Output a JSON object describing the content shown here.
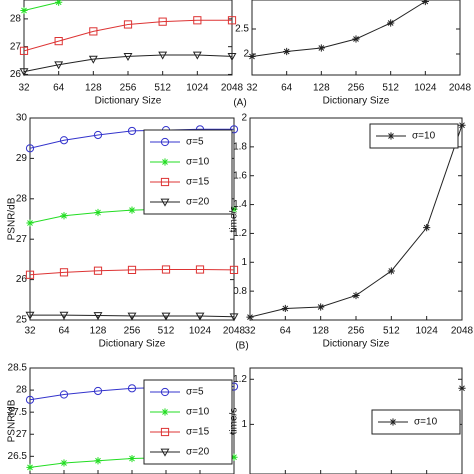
{
  "chart_data": [
    {
      "type": "line",
      "categories": [
        "32",
        "64",
        "128",
        "256",
        "512",
        "1024",
        "2048"
      ],
      "xlabel": "Dictionary Size",
      "annotation": "(A)",
      "ylim": [
        25.98,
        28.68
      ],
      "yticks": [
        26,
        27,
        28
      ],
      "series": [
        {
          "name": "σ=10",
          "color": "#22dd22",
          "marker": "star",
          "values": [
            28.3,
            28.6,
            null,
            null,
            null,
            null,
            null
          ]
        },
        {
          "name": "σ=15",
          "color": "#dd3333",
          "marker": "square",
          "values": [
            26.85,
            27.2,
            27.55,
            27.8,
            27.9,
            27.95,
            27.95
          ]
        },
        {
          "name": "σ=20",
          "color": "#222222",
          "marker": "triangle",
          "values": [
            26.1,
            26.35,
            26.55,
            26.65,
            26.7,
            26.7,
            26.65
          ]
        }
      ]
    },
    {
      "type": "line",
      "categories": [
        "32",
        "64",
        "128",
        "256",
        "512",
        "1024",
        "2048"
      ],
      "xlabel": "Dictionary Size",
      "ylim": [
        1.58,
        3.08
      ],
      "yticks": [
        2,
        2.5
      ],
      "series": [
        {
          "name": "σ=10",
          "color": "#222222",
          "marker": "star",
          "values": [
            1.95,
            2.05,
            2.12,
            2.3,
            2.62,
            3.05,
            null
          ]
        }
      ]
    },
    {
      "type": "line",
      "categories": [
        "32",
        "64",
        "128",
        "256",
        "512",
        "1024",
        "2048"
      ],
      "xlabel": "Dictionary Size",
      "ylabel": "PSNR/dB",
      "annotation": "(B)",
      "legend": "upper right",
      "ylim": [
        25,
        30
      ],
      "yticks": [
        25,
        26,
        27,
        28,
        29,
        30
      ],
      "series": [
        {
          "name": "σ=5",
          "color": "#3333cc",
          "marker": "circle",
          "values": [
            29.25,
            29.45,
            29.58,
            29.68,
            29.7,
            29.72,
            29.72
          ]
        },
        {
          "name": "σ=10",
          "color": "#22dd22",
          "marker": "star",
          "values": [
            27.4,
            27.58,
            27.66,
            27.72,
            27.74,
            27.75,
            27.74
          ]
        },
        {
          "name": "σ=15",
          "color": "#dd3333",
          "marker": "square",
          "values": [
            26.12,
            26.18,
            26.22,
            26.24,
            26.25,
            26.25,
            26.24
          ]
        },
        {
          "name": "σ=20",
          "color": "#222222",
          "marker": "triangle",
          "values": [
            25.12,
            25.12,
            25.11,
            25.1,
            25.1,
            25.1,
            25.08
          ]
        }
      ]
    },
    {
      "type": "line",
      "categories": [
        "32",
        "64",
        "128",
        "256",
        "512",
        "1024",
        "2048"
      ],
      "xlabel": "Dictionary Size",
      "ylabel": "time/s",
      "legend": "upper left",
      "ylim": [
        0.6,
        2
      ],
      "yticks": [
        0.8,
        1,
        1.2,
        1.4,
        1.6,
        1.8,
        2
      ],
      "series": [
        {
          "name": "σ=10",
          "color": "#222222",
          "marker": "star",
          "values": [
            0.62,
            0.68,
            0.69,
            0.77,
            0.94,
            1.24,
            1.95
          ]
        }
      ]
    },
    {
      "type": "line",
      "categories": [
        "32",
        "64",
        "128",
        "256",
        "512",
        "1024",
        "2048"
      ],
      "ylabel": "PSNR/dB",
      "legend": "upper right",
      "ylim": [
        26.1,
        28.5
      ],
      "yticks": [
        26.5,
        27,
        27.5,
        28,
        28.5
      ],
      "series": [
        {
          "name": "σ=5",
          "color": "#3333cc",
          "marker": "circle",
          "values": [
            27.78,
            27.9,
            27.98,
            28.04,
            28.06,
            28.08,
            28.08
          ]
        },
        {
          "name": "σ=10",
          "color": "#22dd22",
          "marker": "star",
          "values": [
            26.25,
            26.35,
            26.4,
            26.45,
            26.47,
            26.48,
            26.48
          ]
        },
        {
          "name": "σ=15",
          "color": "#dd3333",
          "marker": "square",
          "values": [
            null,
            null,
            null,
            null,
            null,
            null,
            null
          ]
        },
        {
          "name": "σ=20",
          "color": "#222222",
          "marker": "triangle",
          "values": [
            null,
            null,
            null,
            null,
            null,
            null,
            null
          ]
        }
      ]
    },
    {
      "type": "line",
      "categories": [
        "32",
        "64",
        "128",
        "256",
        "512",
        "1024",
        "2048"
      ],
      "ylabel": "time/s",
      "legend": "center right",
      "ylim": [
        0.78,
        1.25
      ],
      "yticks": [
        1,
        1.2
      ],
      "series": [
        {
          "name": "σ=10",
          "color": "#222222",
          "marker": "star",
          "values": [
            null,
            null,
            null,
            null,
            null,
            null,
            1.16
          ]
        }
      ]
    }
  ]
}
